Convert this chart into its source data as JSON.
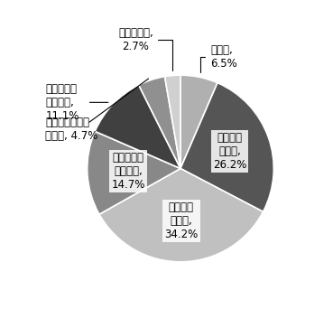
{
  "values": [
    6.5,
    26.2,
    34.2,
    14.7,
    11.1,
    4.7,
    2.7
  ],
  "colors": [
    "#b0b0b0",
    "#555555",
    "#c0c0c0",
    "#888888",
    "#404040",
    "#909090",
    "#d0d0d0"
  ],
  "inside_labels": [
    "",
    "おおいに\nなった,\n26.2%",
    "まあまあ\nなった,\n34.2%",
    "どちらとも\nいえない,\n14.7%",
    "",
    "",
    ""
  ],
  "label_無回答": "無回答,\n6.5%",
  "label_あまり": "あまりなら\nなかった,\n11.1%",
  "label_まったく": "まったくならな\nかった, 4.7%",
  "label_わからない": "わからない,\n2.7%",
  "edgecolor": "#ffffff",
  "fontsize": 8.5
}
